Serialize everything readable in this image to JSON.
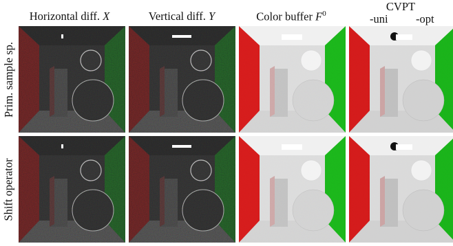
{
  "columns": [
    {
      "label_main": "Horizontal diff. ",
      "label_var": "X"
    },
    {
      "label_main": "Vertical diff. ",
      "label_var": "Y"
    },
    {
      "label_main": "Color buffer ",
      "label_var": "F",
      "label_sup": "0"
    },
    {
      "label_main": "CVPT",
      "sub_left": "-uni",
      "sub_right": "-opt"
    }
  ],
  "rows": [
    {
      "label": "Prim. sample sp."
    },
    {
      "label": "Shift operator"
    }
  ],
  "panel_types": [
    "diff-x",
    "diff-y",
    "color",
    "cvpt",
    "diff-x",
    "diff-y",
    "color",
    "cvpt"
  ],
  "colors": {
    "left_wall": "#d21a1a",
    "right_wall": "#19b019",
    "white_walls": "#e8e8e8",
    "diff_background": "#3a3a3a"
  }
}
